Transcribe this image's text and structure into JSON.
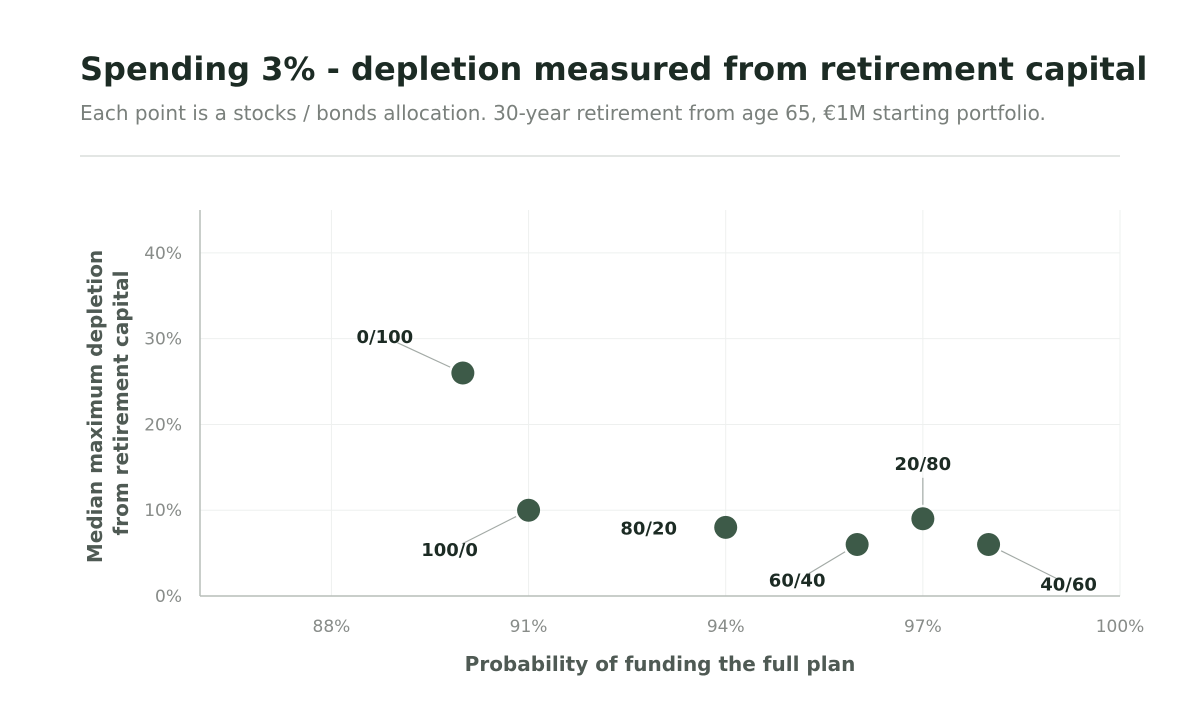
{
  "header": {
    "title": "Spending 3% - depletion measured from retirement capital",
    "subtitle": "Each point is a stocks / bonds allocation. 30-year retirement from age 65, €1M starting portfolio."
  },
  "colors": {
    "point": "#3d5a48",
    "grid": "#eef0ef",
    "axis": "#b7bdb9",
    "leader": "#a3aaa6"
  },
  "chart_data": {
    "type": "scatter",
    "xlabel": "Probability of funding the full plan",
    "ylabel_lines": [
      "Median maximum depletion",
      "from retirement capital"
    ],
    "xlim": [
      86,
      100
    ],
    "ylim": [
      0,
      45
    ],
    "xticks": [
      88,
      91,
      94,
      97,
      100
    ],
    "xtick_labels": [
      "88%",
      "91%",
      "94%",
      "97%",
      "100%"
    ],
    "yticks": [
      0,
      10,
      20,
      30,
      40
    ],
    "ytick_labels": [
      "0%",
      "10%",
      "20%",
      "30%",
      "40%"
    ],
    "grid": true,
    "points": [
      {
        "label": "0/100",
        "x": 90,
        "y": 26
      },
      {
        "label": "100/0",
        "x": 91,
        "y": 10
      },
      {
        "label": "80/20",
        "x": 94,
        "y": 8
      },
      {
        "label": "60/40",
        "x": 96,
        "y": 6
      },
      {
        "label": "20/80",
        "x": 97,
        "y": 9
      },
      {
        "label": "40/60",
        "x": 98,
        "y": 6
      }
    ]
  }
}
